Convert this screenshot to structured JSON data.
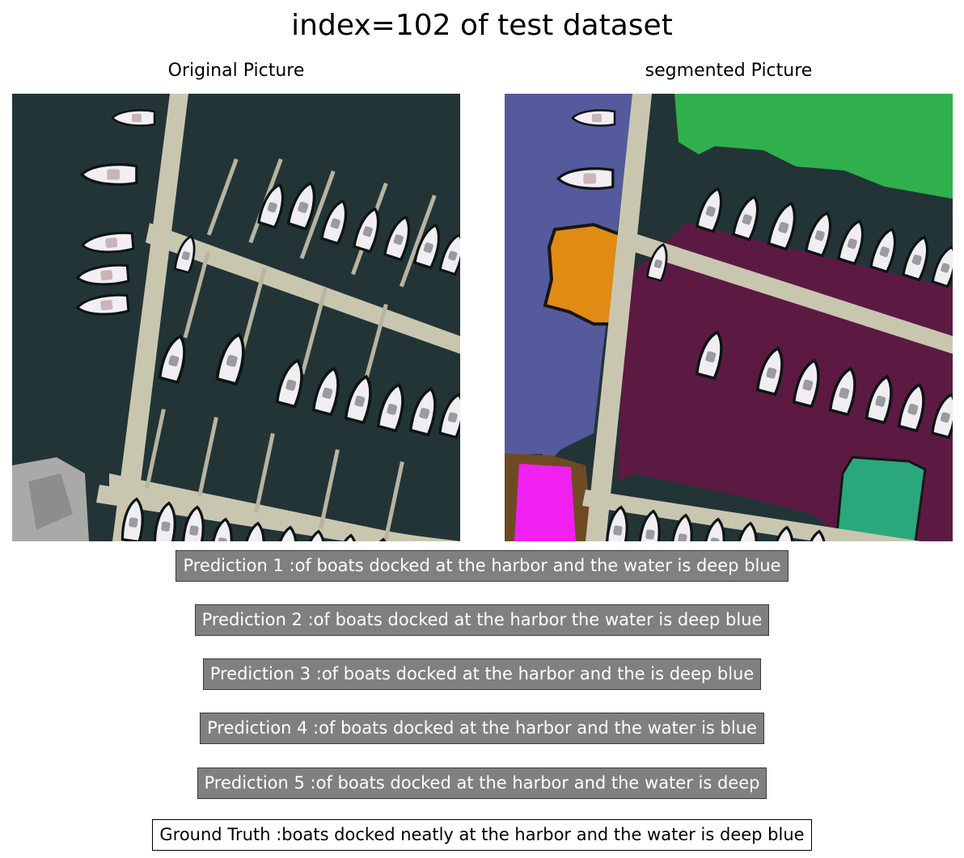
{
  "figure": {
    "title": "index=102 of test dataset",
    "left_panel_title": "Original Picture",
    "right_panel_title": "segmented Picture"
  },
  "image_panels": {
    "original": {
      "scene": "aerial photo of boats docked along piers in a marina",
      "water_color": "#223436",
      "dock_color": "#c9c6b0"
    },
    "segmented": {
      "region_colors": {
        "left_water": "#545a9c",
        "top_right": "#2fb04c",
        "main_water": "#5c1a42",
        "orange_patch": "#e08b14",
        "magenta_patch": "#f020f0",
        "brown_patch": "#6e4a23",
        "teal_patch": "#2aa87c"
      }
    }
  },
  "predictions": [
    "Prediction 1 :of boats docked at the harbor and the water is deep blue",
    "Prediction 2 :of boats docked at the harbor the water is deep blue",
    "Prediction 3 :of boats docked at the harbor and the is deep blue",
    "Prediction 4 :of boats docked at the harbor and the water is blue",
    "Prediction 5 :of boats docked at the harbor and the water is deep"
  ],
  "ground_truth": "Ground Truth :boats docked neatly at the harbor and the water is deep blue"
}
